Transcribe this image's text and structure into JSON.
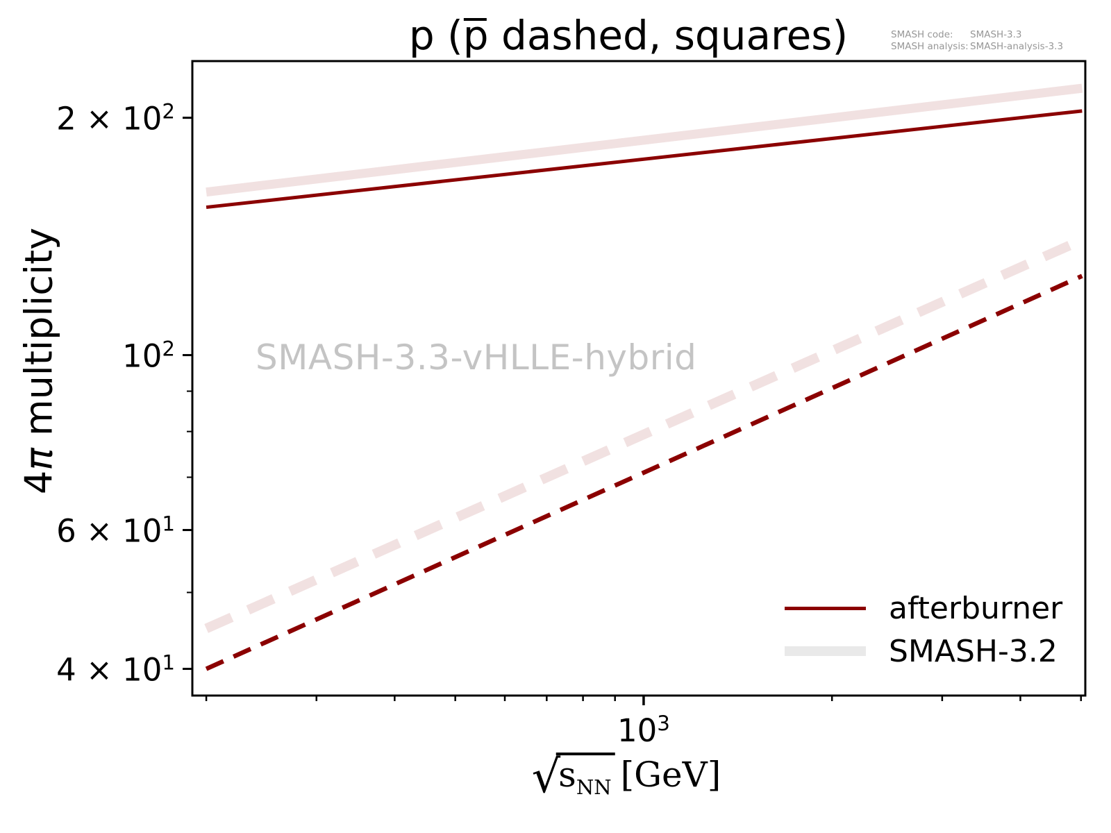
{
  "figure": {
    "title": {
      "prefix": "p (",
      "pbar": "p",
      "suffix": " dashed, squares)"
    },
    "annotation": {
      "rows": [
        {
          "label": "SMASH code:",
          "value": "SMASH-3.3"
        },
        {
          "label": "SMASH analysis:",
          "value": "SMASH-analysis-3.3"
        }
      ]
    },
    "watermark": "SMASH-3.3-vHLLE-hybrid",
    "ylabel": {
      "num": "4",
      "pi": "π",
      "text": " multiplicity"
    },
    "xlabel": {
      "radical": "√",
      "var": "s",
      "sub": "NN",
      "unit": "[GeV]"
    }
  },
  "chart_data": {
    "type": "line",
    "title": "p (p̄ dashed, squares)",
    "xlabel": "sqrt(s_NN) [GeV]",
    "ylabel": "4π multiplicity",
    "xscale": "log",
    "yscale": "log",
    "xlim": [
      190,
      5080
    ],
    "ylim": [
      37,
      236
    ],
    "grid": false,
    "legend_position": "lower right",
    "series": [
      {
        "name": "SMASH-3.2 p (solid)",
        "color": "#f1e1e1",
        "width": 13,
        "dash": null,
        "x": [
          200,
          5020
        ],
        "y": [
          161,
          218
        ]
      },
      {
        "name": "SMASH-3.2 pbar (dashed)",
        "color": "#f1e1e1",
        "width": 14,
        "dash": [
          40,
          26
        ],
        "x": [
          200,
          5020
        ],
        "y": [
          45,
          140
        ]
      },
      {
        "name": "afterburner p (solid)",
        "color": "#8b0000",
        "width": 5,
        "dash": null,
        "x": [
          200,
          5020
        ],
        "y": [
          154,
          204
        ]
      },
      {
        "name": "afterburner pbar (dashed)",
        "color": "#8b0000",
        "width": 6.5,
        "dash": [
          27,
          16
        ],
        "x": [
          200,
          5020
        ],
        "y": [
          40,
          126
        ]
      }
    ],
    "yticks": {
      "labeled": [
        {
          "v": 200,
          "base": "2 × 10",
          "exp": "2"
        },
        {
          "v": 100,
          "base": "10",
          "exp": "2"
        },
        {
          "v": 60,
          "base": "6 × 10",
          "exp": "1"
        },
        {
          "v": 40,
          "base": "4 × 10",
          "exp": "1"
        }
      ],
      "minor": [
        50,
        70,
        80,
        90
      ]
    },
    "xticks": {
      "labeled": [
        {
          "v": 1000,
          "base": "10",
          "exp": "3"
        }
      ],
      "minor": [
        200,
        300,
        400,
        500,
        600,
        700,
        800,
        900,
        2000,
        3000,
        4000,
        5000
      ]
    },
    "legend": [
      {
        "label": "afterburner",
        "color": "#8b0000",
        "thickness": 5
      },
      {
        "label": "SMASH-3.2",
        "color": "#e9e9e9",
        "thickness": 14
      }
    ],
    "colors": {
      "axes": "#000000",
      "watermark": "#c4c4c4",
      "annotation": "#979797"
    }
  }
}
